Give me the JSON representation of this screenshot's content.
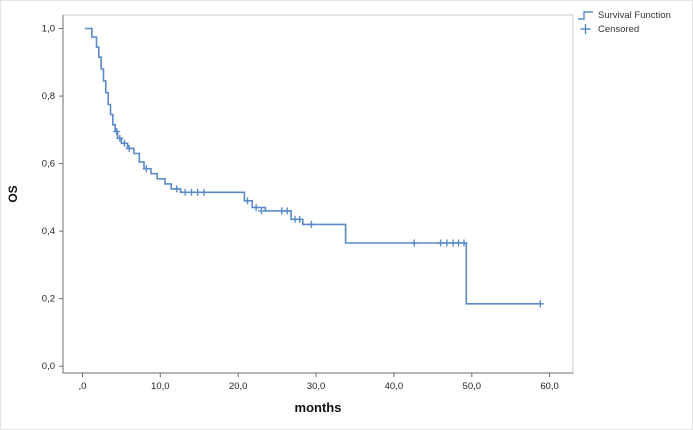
{
  "chart_data": {
    "type": "line",
    "subtype": "kaplan_meier_step_curve",
    "title": "",
    "xlabel": "months",
    "ylabel": "OS",
    "xlim": [
      -2.5,
      63
    ],
    "ylim": [
      -0.02,
      1.04
    ],
    "x_ticks": [
      0,
      10,
      20,
      30,
      40,
      50,
      60
    ],
    "x_tick_labels": [
      ",0",
      "10,0",
      "20,0",
      "30,0",
      "40,0",
      "50,0",
      "60,0"
    ],
    "y_ticks": [
      0,
      0.2,
      0.4,
      0.6,
      0.8,
      1.0
    ],
    "y_tick_labels": [
      "0,0",
      "0,2",
      "0,4",
      "0,6",
      "0,8",
      "1,0"
    ],
    "grid": false,
    "legend_position": "top-right-outside",
    "line_color": "#5b8ac9",
    "axis_color": "#6e6e6e",
    "frame_color": "#c9c9c9",
    "tick_label_color": "#222222",
    "legend": [
      {
        "label": "Survival Function",
        "marker": "step-line"
      },
      {
        "label": "Censored",
        "marker": "plus"
      }
    ],
    "series": [
      {
        "name": "Survival Function",
        "step_points": [
          [
            0.3,
            1.0
          ],
          [
            1.2,
            0.975
          ],
          [
            1.8,
            0.945
          ],
          [
            2.1,
            0.915
          ],
          [
            2.4,
            0.88
          ],
          [
            2.7,
            0.845
          ],
          [
            3.0,
            0.81
          ],
          [
            3.3,
            0.775
          ],
          [
            3.6,
            0.745
          ],
          [
            3.9,
            0.715
          ],
          [
            4.2,
            0.695
          ],
          [
            4.5,
            0.675
          ],
          [
            5.0,
            0.66
          ],
          [
            5.8,
            0.645
          ],
          [
            6.6,
            0.63
          ],
          [
            7.3,
            0.605
          ],
          [
            7.9,
            0.585
          ],
          [
            8.8,
            0.57
          ],
          [
            9.6,
            0.555
          ],
          [
            10.6,
            0.54
          ],
          [
            11.4,
            0.525
          ],
          [
            12.6,
            0.515
          ],
          [
            20.8,
            0.49
          ],
          [
            21.8,
            0.47
          ],
          [
            23.5,
            0.46
          ],
          [
            26.8,
            0.435
          ],
          [
            28.3,
            0.42
          ],
          [
            33.8,
            0.365
          ],
          [
            49.3,
            0.185
          ]
        ],
        "curve_end_x": 58.8
      },
      {
        "name": "Censored",
        "points": [
          [
            4.4,
            0.695
          ],
          [
            4.8,
            0.675
          ],
          [
            5.4,
            0.66
          ],
          [
            6.0,
            0.645
          ],
          [
            8.2,
            0.585
          ],
          [
            12.1,
            0.525
          ],
          [
            13.2,
            0.515
          ],
          [
            14.0,
            0.515
          ],
          [
            14.8,
            0.515
          ],
          [
            15.6,
            0.515
          ],
          [
            21.2,
            0.49
          ],
          [
            22.3,
            0.47
          ],
          [
            23.0,
            0.46
          ],
          [
            25.6,
            0.46
          ],
          [
            26.3,
            0.46
          ],
          [
            27.3,
            0.435
          ],
          [
            27.9,
            0.435
          ],
          [
            29.4,
            0.42
          ],
          [
            42.6,
            0.365
          ],
          [
            46.0,
            0.365
          ],
          [
            46.8,
            0.365
          ],
          [
            47.6,
            0.365
          ],
          [
            48.3,
            0.365
          ],
          [
            49.0,
            0.365
          ],
          [
            58.8,
            0.185
          ]
        ]
      }
    ]
  }
}
